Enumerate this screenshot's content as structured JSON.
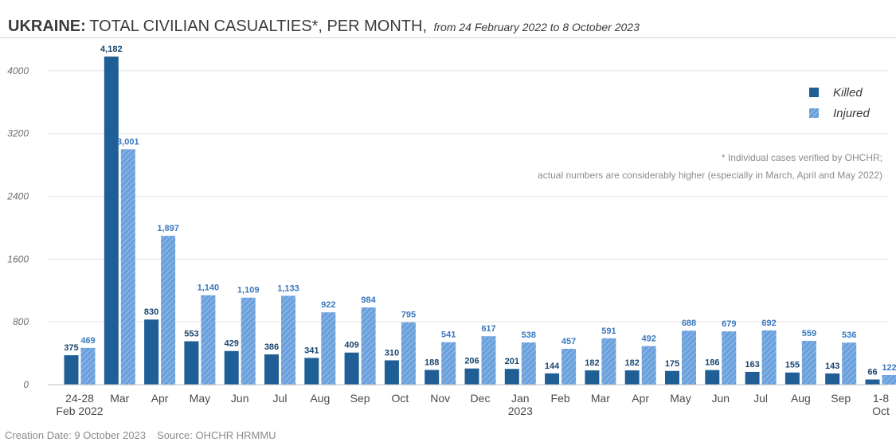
{
  "header": {
    "title_strong": "UKRAINE:",
    "title_main": "TOTAL CIVILIAN CASUALTIES*, PER MONTH,",
    "subtitle": "from 24 February 2022 to 8 October 2023"
  },
  "footer": {
    "creation": "Creation Date: 9 October 2023",
    "source": "Source: OHCHR HRMMU"
  },
  "colors": {
    "killed": "#1f5f96",
    "injured": "#6aa0dc",
    "injured_stripe": "#a9c8ee",
    "label_killed": "#17456f",
    "label_injured": "#3a78bf",
    "grid": "#e3e3e3",
    "axis_text": "#6b6b6b"
  },
  "chart_data": {
    "type": "bar",
    "ylim": [
      0,
      4200
    ],
    "yticks": [
      0,
      800,
      1600,
      2400,
      3200,
      4000
    ],
    "grid": true,
    "legend_position": "top-right",
    "categories": [
      [
        "24-28",
        "Feb 2022"
      ],
      [
        "Mar"
      ],
      [
        "Apr"
      ],
      [
        "May"
      ],
      [
        "Jun"
      ],
      [
        "Jul"
      ],
      [
        "Aug"
      ],
      [
        "Sep"
      ],
      [
        "Oct"
      ],
      [
        "Nov"
      ],
      [
        "Dec"
      ],
      [
        "Jan",
        "2023"
      ],
      [
        "Feb"
      ],
      [
        "Mar"
      ],
      [
        "Apr"
      ],
      [
        "May"
      ],
      [
        "Jun"
      ],
      [
        "Jul"
      ],
      [
        "Aug"
      ],
      [
        "Sep"
      ],
      [
        "1-8",
        "Oct"
      ]
    ],
    "series": [
      {
        "name": "Killed",
        "values": [
          375,
          4182,
          830,
          553,
          429,
          386,
          341,
          409,
          310,
          188,
          206,
          201,
          144,
          182,
          182,
          175,
          186,
          163,
          155,
          143,
          66
        ],
        "labels": [
          "375",
          "4,182",
          "830",
          "553",
          "429",
          "386",
          "341",
          "409",
          "310",
          "188",
          "206",
          "201",
          "144",
          "182",
          "182",
          "175",
          "186",
          "163",
          "155",
          "143",
          "66"
        ]
      },
      {
        "name": "Injured",
        "values": [
          469,
          3001,
          1897,
          1140,
          1109,
          1133,
          922,
          984,
          795,
          541,
          617,
          538,
          457,
          591,
          492,
          688,
          679,
          692,
          559,
          536,
          122
        ],
        "labels": [
          "469",
          "3,001",
          "1,897",
          "1,140",
          "1,109",
          "1,133",
          "922",
          "984",
          "795",
          "541",
          "617",
          "538",
          "457",
          "591",
          "492",
          "688",
          "679",
          "692",
          "559",
          "536",
          "122"
        ]
      }
    ],
    "note": [
      "* Individual cases verified by OHCHR;",
      "actual numbers are considerably higher (especially in March, April and May 2022)"
    ]
  }
}
